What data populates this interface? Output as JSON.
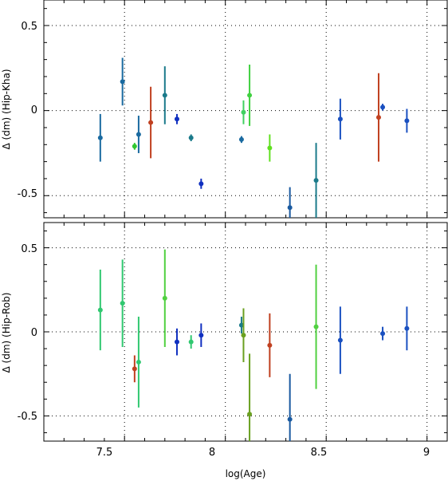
{
  "chart_data": [
    {
      "type": "scatter",
      "panel": "top",
      "xlabel": "",
      "ylabel": "Δ (dm) (Hip-Kha)",
      "xlim": [
        7.1,
        9.1
      ],
      "ylim": [
        -0.63,
        0.65
      ],
      "xticks": [
        7.5,
        8,
        8.5,
        9
      ],
      "yticks": [
        0.5,
        0,
        -0.5
      ],
      "ytick_labels": [
        "0.5",
        "0",
        "-0.5"
      ],
      "grid": "dotted at major ticks",
      "points": [
        {
          "x": 7.38,
          "y": -0.16,
          "lo": -0.3,
          "hi": -0.02,
          "color": "#1a6aa0"
        },
        {
          "x": 7.49,
          "y": 0.17,
          "lo": 0.03,
          "hi": 0.31,
          "color": "#1a6aa0"
        },
        {
          "x": 7.55,
          "y": -0.21,
          "lo": -0.23,
          "hi": -0.19,
          "color": "#30c830"
        },
        {
          "x": 7.57,
          "y": -0.14,
          "lo": -0.25,
          "hi": -0.03,
          "color": "#1a6aa0"
        },
        {
          "x": 7.63,
          "y": -0.07,
          "lo": -0.28,
          "hi": 0.14,
          "color": "#c04020"
        },
        {
          "x": 7.7,
          "y": 0.09,
          "lo": -0.08,
          "hi": 0.26,
          "color": "#1a7a8a"
        },
        {
          "x": 7.76,
          "y": -0.05,
          "lo": -0.08,
          "hi": -0.02,
          "color": "#1030c0"
        },
        {
          "x": 7.83,
          "y": -0.16,
          "lo": -0.18,
          "hi": -0.14,
          "color": "#1a7a8a"
        },
        {
          "x": 7.88,
          "y": -0.43,
          "lo": -0.46,
          "hi": -0.4,
          "color": "#1030c0"
        },
        {
          "x": 8.08,
          "y": -0.17,
          "lo": -0.19,
          "hi": -0.15,
          "color": "#1a6aa0"
        },
        {
          "x": 8.09,
          "y": -0.01,
          "lo": -0.08,
          "hi": 0.06,
          "color": "#40d060"
        },
        {
          "x": 8.12,
          "y": 0.09,
          "lo": -0.09,
          "hi": 0.27,
          "color": "#40d040"
        },
        {
          "x": 8.22,
          "y": -0.22,
          "lo": -0.3,
          "hi": -0.14,
          "color": "#60e020"
        },
        {
          "x": 8.32,
          "y": -0.57,
          "lo": -0.76,
          "hi": -0.45,
          "color": "#1a5aa0"
        },
        {
          "x": 8.45,
          "y": -0.41,
          "lo": -0.63,
          "hi": -0.19,
          "color": "#1a7a8a"
        },
        {
          "x": 8.57,
          "y": -0.05,
          "lo": -0.17,
          "hi": 0.07,
          "color": "#1a50c0"
        },
        {
          "x": 8.76,
          "y": -0.04,
          "lo": -0.3,
          "hi": 0.22,
          "color": "#c04020"
        },
        {
          "x": 8.78,
          "y": 0.02,
          "lo": 0.0,
          "hi": 0.04,
          "color": "#1a50c0"
        },
        {
          "x": 8.9,
          "y": -0.06,
          "lo": -0.13,
          "hi": 0.01,
          "color": "#1a50c0"
        }
      ]
    },
    {
      "type": "scatter",
      "panel": "bottom",
      "xlabel": "log(Age)",
      "ylabel": "Δ (dm) (Hip-Rob)",
      "xlim": [
        7.1,
        9.1
      ],
      "ylim": [
        -0.65,
        0.65
      ],
      "xticks": [
        7.5,
        8,
        8.5,
        9
      ],
      "xtick_labels": [
        "7.5",
        "8",
        "8.5",
        "9"
      ],
      "yticks": [
        0.5,
        0,
        -0.5
      ],
      "ytick_labels": [
        "0.5",
        "0",
        "-0.5"
      ],
      "grid": "dotted at major ticks",
      "points": [
        {
          "x": 7.38,
          "y": 0.13,
          "lo": -0.11,
          "hi": 0.37,
          "color": "#30c870"
        },
        {
          "x": 7.49,
          "y": 0.17,
          "lo": -0.09,
          "hi": 0.43,
          "color": "#30c870"
        },
        {
          "x": 7.55,
          "y": -0.22,
          "lo": -0.3,
          "hi": -0.14,
          "color": "#c04020"
        },
        {
          "x": 7.57,
          "y": -0.18,
          "lo": -0.45,
          "hi": 0.09,
          "color": "#30c870"
        },
        {
          "x": 7.7,
          "y": 0.2,
          "lo": -0.09,
          "hi": 0.49,
          "color": "#50d040"
        },
        {
          "x": 7.76,
          "y": -0.06,
          "lo": -0.14,
          "hi": 0.02,
          "color": "#1030c0"
        },
        {
          "x": 7.83,
          "y": -0.06,
          "lo": -0.1,
          "hi": -0.02,
          "color": "#30c870"
        },
        {
          "x": 7.88,
          "y": -0.02,
          "lo": -0.09,
          "hi": 0.05,
          "color": "#1030c0"
        },
        {
          "x": 8.08,
          "y": 0.04,
          "lo": -0.01,
          "hi": 0.09,
          "color": "#1a7a8a"
        },
        {
          "x": 8.09,
          "y": -0.02,
          "lo": -0.18,
          "hi": 0.14,
          "color": "#6aa020"
        },
        {
          "x": 8.12,
          "y": -0.49,
          "lo": -0.85,
          "hi": -0.13,
          "color": "#6aa020"
        },
        {
          "x": 8.22,
          "y": -0.08,
          "lo": -0.27,
          "hi": 0.11,
          "color": "#c04020"
        },
        {
          "x": 8.32,
          "y": -0.52,
          "lo": -0.72,
          "hi": -0.25,
          "color": "#1a5aa0"
        },
        {
          "x": 8.45,
          "y": 0.03,
          "lo": -0.34,
          "hi": 0.4,
          "color": "#50d040"
        },
        {
          "x": 8.57,
          "y": -0.05,
          "lo": -0.25,
          "hi": 0.15,
          "color": "#1a50c0"
        },
        {
          "x": 8.78,
          "y": -0.01,
          "lo": -0.05,
          "hi": 0.03,
          "color": "#1a50c0"
        },
        {
          "x": 8.9,
          "y": 0.02,
          "lo": -0.11,
          "hi": 0.15,
          "color": "#1a50c0"
        }
      ]
    }
  ]
}
